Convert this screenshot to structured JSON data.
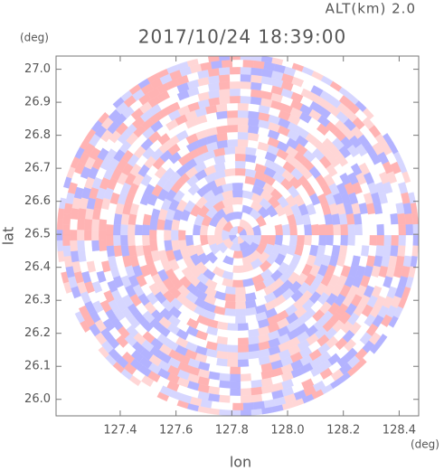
{
  "chart_data": {
    "type": "radar-ppi",
    "title": "2017/10/24 18:39:00",
    "subtitle": "ALT(km) 2.0",
    "x_label": "lon",
    "y_label": "lat",
    "x_unit": "(deg)",
    "y_unit": "(deg)",
    "xlim": [
      127.17,
      128.47
    ],
    "xticks": [
      127.4,
      127.6,
      127.8,
      {
        "value": 128,
        "label": "128.0"
      },
      128.2,
      128.4
    ],
    "ylim": [
      25.95,
      27.04
    ],
    "yticks": [
      {
        "value": 26,
        "label": "26.0"
      },
      26.1,
      26.2,
      26.3,
      26.4,
      26.5,
      26.6,
      26.7,
      26.8,
      26.9,
      {
        "value": 27,
        "label": "27.0"
      }
    ],
    "colors": [
      "#ffb3b3",
      "#ffd6d6",
      "#ffffff",
      "#d6d6ff",
      "#b3b3ff"
    ]
  }
}
